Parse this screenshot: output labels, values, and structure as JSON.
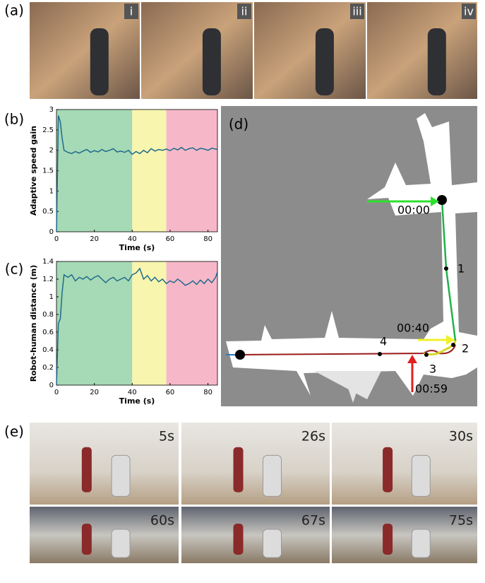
{
  "panels": [
    "(a)",
    "(b)",
    "(c)",
    "(d)",
    "(e)"
  ],
  "photos_a": [
    "i",
    "ii",
    "iii",
    "iv"
  ],
  "photos_e": [
    "5s",
    "26s",
    "30s",
    "60s",
    "67s",
    "75s"
  ],
  "map": {
    "labels": [
      "00:00",
      "1",
      "00:40",
      "2",
      "3",
      "4",
      "00:59"
    ]
  },
  "chart_data": [
    {
      "type": "line",
      "x_label": "Time (s)",
      "y_label": "Adaptive speed gain",
      "color": "#1f6b8c",
      "xlim": [
        0,
        85
      ],
      "ylim": [
        0,
        3
      ],
      "xticks": [
        0,
        20,
        40,
        60,
        80
      ],
      "yticks": [
        0,
        0.5,
        1,
        1.5,
        2,
        2.5,
        3
      ],
      "bands": [
        {
          "from": 0,
          "to": 40,
          "color": "#a6d9b5"
        },
        {
          "from": 40,
          "to": 58,
          "color": "#f7f5ae"
        },
        {
          "from": 58,
          "to": 85,
          "color": "#f6b8c9"
        }
      ],
      "x": [
        0,
        1,
        2,
        3,
        4,
        6,
        8,
        10,
        12,
        14,
        16,
        18,
        20,
        22,
        24,
        26,
        28,
        30,
        32,
        34,
        36,
        38,
        40,
        42,
        44,
        46,
        48,
        50,
        52,
        54,
        56,
        58,
        60,
        62,
        64,
        66,
        68,
        70,
        72,
        74,
        76,
        78,
        80,
        82,
        84,
        85
      ],
      "values": [
        0,
        2.85,
        2.7,
        2.3,
        2.0,
        1.95,
        1.92,
        1.97,
        1.93,
        1.98,
        2.02,
        1.95,
        1.99,
        1.96,
        2.02,
        1.97,
        2.0,
        2.04,
        1.96,
        1.98,
        1.95,
        2.0,
        1.9,
        1.97,
        1.92,
        2.0,
        1.94,
        2.04,
        1.98,
        2.02,
        2.0,
        2.03,
        1.99,
        2.05,
        2.01,
        2.07,
        2.0,
        2.04,
        2.06,
        2.0,
        2.05,
        2.03,
        2.0,
        2.05,
        2.03,
        2.02
      ]
    },
    {
      "type": "line",
      "x_label": "Time (s)",
      "y_label": "Robot-human distance (m)",
      "color": "#1f6b8c",
      "xlim": [
        0,
        85
      ],
      "ylim": [
        0,
        1.4
      ],
      "xticks": [
        0,
        20,
        40,
        60,
        80
      ],
      "yticks": [
        0,
        0.2,
        0.4,
        0.6,
        0.8,
        1,
        1.2,
        1.4
      ],
      "bands": [
        {
          "from": 0,
          "to": 40,
          "color": "#a6d9b5"
        },
        {
          "from": 40,
          "to": 58,
          "color": "#f7f5ae"
        },
        {
          "from": 58,
          "to": 85,
          "color": "#f6b8c9"
        }
      ],
      "x": [
        0,
        1,
        2,
        3,
        4,
        6,
        8,
        10,
        12,
        14,
        16,
        18,
        20,
        22,
        24,
        26,
        28,
        30,
        32,
        34,
        36,
        38,
        40,
        42,
        44,
        46,
        48,
        50,
        52,
        54,
        56,
        58,
        60,
        62,
        64,
        66,
        68,
        70,
        72,
        74,
        76,
        78,
        80,
        82,
        84,
        85
      ],
      "values": [
        0,
        0.7,
        0.75,
        1.05,
        1.25,
        1.22,
        1.25,
        1.18,
        1.22,
        1.2,
        1.23,
        1.19,
        1.22,
        1.24,
        1.2,
        1.16,
        1.2,
        1.22,
        1.18,
        1.2,
        1.22,
        1.18,
        1.25,
        1.27,
        1.32,
        1.2,
        1.24,
        1.18,
        1.22,
        1.17,
        1.2,
        1.15,
        1.18,
        1.16,
        1.2,
        1.17,
        1.13,
        1.15,
        1.18,
        1.14,
        1.19,
        1.15,
        1.2,
        1.16,
        1.22,
        1.28
      ]
    }
  ]
}
